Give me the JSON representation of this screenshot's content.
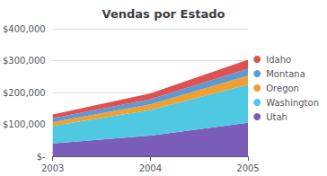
{
  "chart_data": {
    "type": "area",
    "title": "Vendas por Estado",
    "stacked": true,
    "categories": [
      "2003",
      "2004",
      "2005"
    ],
    "series": [
      {
        "name": "Utah",
        "color": "#7B5CB8",
        "values": [
          40000,
          65000,
          105000
        ]
      },
      {
        "name": "Washington",
        "color": "#4EC9E1",
        "values": [
          55000,
          80000,
          120000
        ]
      },
      {
        "name": "Oregon",
        "color": "#F0A030",
        "values": [
          12000,
          18000,
          28000
        ]
      },
      {
        "name": "Montana",
        "color": "#5B9BD5",
        "values": [
          12000,
          16000,
          22000
        ]
      },
      {
        "name": "Idaho",
        "color": "#E05050",
        "values": [
          12000,
          18000,
          28000
        ]
      }
    ],
    "ylim": [
      0,
      400000
    ],
    "yticks": [
      {
        "value": 0,
        "label": "$-"
      },
      {
        "value": 100000,
        "label": "$100,000"
      },
      {
        "value": 200000,
        "label": "$200,000"
      },
      {
        "value": 300000,
        "label": "$300,000"
      },
      {
        "value": 400000,
        "label": "$400,000"
      }
    ],
    "grid": true,
    "legend": "right"
  }
}
